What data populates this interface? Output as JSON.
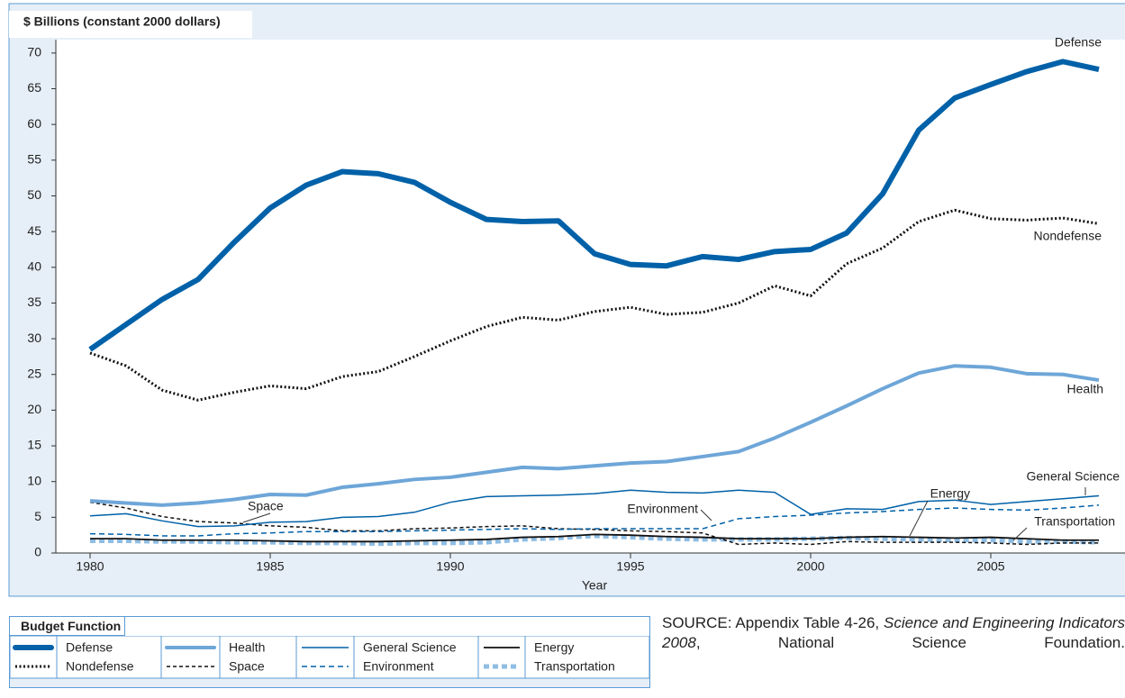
{
  "chart_data": {
    "type": "line",
    "y_label": "$ Billions (constant 2000 dollars)",
    "x_label": "Year",
    "x": [
      1980,
      1981,
      1982,
      1983,
      1984,
      1985,
      1986,
      1987,
      1988,
      1989,
      1990,
      1991,
      1992,
      1993,
      1994,
      1995,
      1996,
      1997,
      1998,
      1999,
      2000,
      2001,
      2002,
      2003,
      2004,
      2005,
      2006,
      2007,
      2008
    ],
    "xlim": [
      1979,
      2009
    ],
    "xticks": [
      1980,
      1985,
      1990,
      1995,
      2000,
      2005
    ],
    "ylim": [
      0,
      72
    ],
    "yticks": [
      0,
      5,
      10,
      15,
      20,
      25,
      30,
      35,
      40,
      45,
      50,
      55,
      60,
      65,
      70
    ],
    "legend_title": "Budget Function",
    "series": [
      {
        "name": "Defense",
        "color": "#0061a8",
        "values": [
          28.5,
          32,
          35.5,
          38.3,
          43.5,
          48.3,
          51.5,
          53.4,
          53.1,
          51.9,
          49.1,
          46.7,
          46.4,
          46.5,
          41.9,
          40.4,
          40.2,
          41.5,
          41.1,
          42.2,
          42.5,
          44.8,
          50.3,
          59.2,
          63.7,
          65.6,
          67.4,
          68.8,
          67.7
        ]
      },
      {
        "name": "Nondefense",
        "color": "#111111",
        "values": [
          28,
          26.2,
          22.8,
          21.4,
          22.5,
          23.4,
          23,
          24.7,
          25.4,
          27.5,
          29.7,
          31.7,
          33,
          32.6,
          33.8,
          34.4,
          33.4,
          33.7,
          35,
          37.4,
          36,
          40.5,
          42.7,
          46.4,
          48,
          46.8,
          46.6,
          46.9,
          46.1
        ]
      },
      {
        "name": "Health",
        "color": "#6ea6d8",
        "values": [
          7.3,
          7,
          6.7,
          7,
          7.5,
          8.2,
          8.1,
          9.2,
          9.7,
          10.3,
          10.6,
          11.3,
          12,
          11.8,
          12.2,
          12.6,
          12.8,
          13.5,
          14.2,
          16.1,
          18.3,
          20.6,
          23,
          25.2,
          26.2,
          26,
          25.1,
          25,
          24.2
        ]
      },
      {
        "name": "Space",
        "color": "#111111",
        "values": [
          7.1,
          6.3,
          5.1,
          4.4,
          4.2,
          3.8,
          3.6,
          3.1,
          3.1,
          3.4,
          3.5,
          3.7,
          3.8,
          3.4,
          3.3,
          3.1,
          3,
          2.8,
          1.2,
          1.4,
          1.2,
          1.6,
          1.5,
          1.5,
          1.5,
          1.4,
          1.2,
          1.4,
          1.4
        ]
      },
      {
        "name": "General Science",
        "color": "#0061a8",
        "values": [
          5.2,
          5.5,
          4.5,
          3.7,
          3.8,
          4.3,
          4.4,
          5,
          5.1,
          5.7,
          7.1,
          7.9,
          8,
          8.1,
          8.3,
          8.8,
          8.5,
          8.4,
          8.8,
          8.5,
          5.4,
          6.2,
          6.1,
          7.2,
          7.4,
          6.8,
          7.2,
          7.6,
          8
        ]
      },
      {
        "name": "Environment",
        "color": "#0061a8",
        "values": [
          2.7,
          2.6,
          2.4,
          2.4,
          2.7,
          2.8,
          3,
          3,
          3,
          3.1,
          3.2,
          3.3,
          3.4,
          3.3,
          3.4,
          3.4,
          3.4,
          3.4,
          4.8,
          5.1,
          5.3,
          5.6,
          5.8,
          6.1,
          6.3,
          6.1,
          6,
          6.3,
          6.7
        ]
      },
      {
        "name": "Energy",
        "color": "#111111",
        "values": [
          2,
          2,
          1.8,
          1.8,
          1.8,
          1.7,
          1.6,
          1.6,
          1.6,
          1.7,
          1.8,
          1.9,
          2.2,
          2.3,
          2.6,
          2.5,
          2.3,
          2.2,
          2,
          2,
          2,
          2.2,
          2.3,
          2.2,
          2.1,
          2.2,
          2,
          1.8,
          1.8
        ]
      },
      {
        "name": "Transportation",
        "color": "#8fbde3",
        "values": [
          1.7,
          1.7,
          1.6,
          1.6,
          1.5,
          1.5,
          1.4,
          1.4,
          1.3,
          1.4,
          1.4,
          1.5,
          1.9,
          2.1,
          2.4,
          2.2,
          2,
          1.9,
          1.9,
          1.9,
          2,
          2.1,
          2,
          1.9,
          1.8,
          1.8,
          1.6,
          1.6,
          1.5
        ]
      }
    ],
    "source": {
      "prefix": "SOURCE: Appendix Table 4-26, ",
      "italic": "Science and Engineering Indicators 2008",
      "suffix": ", National Science Foundation."
    }
  }
}
